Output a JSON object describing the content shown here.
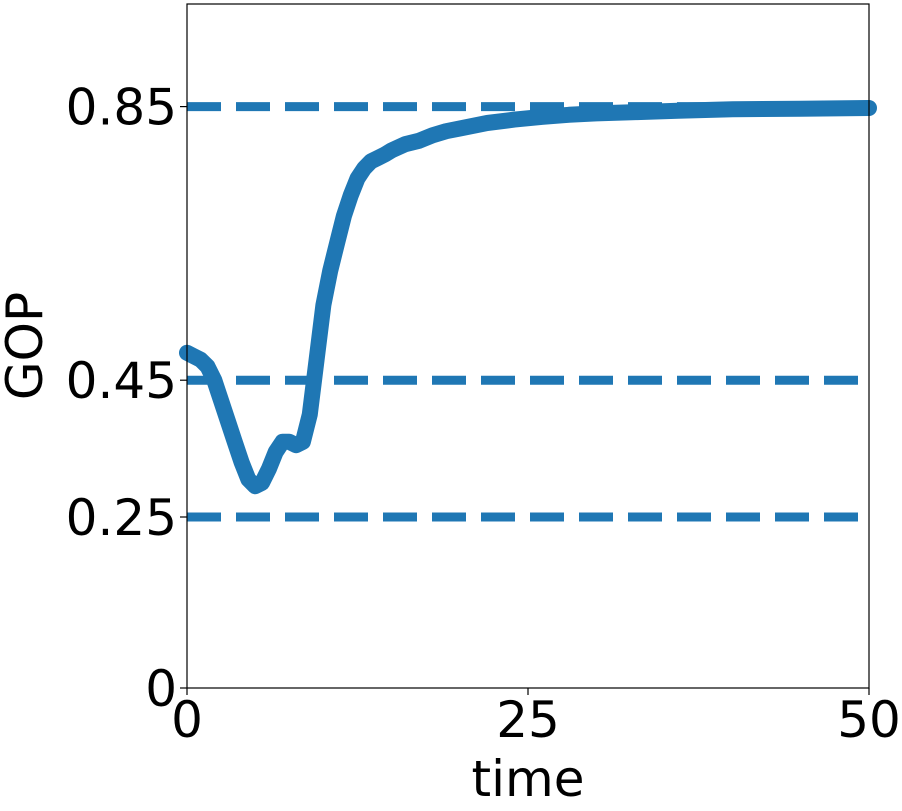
{
  "chart_data": {
    "type": "line",
    "title": "",
    "xlabel": "time",
    "ylabel": "GOP",
    "xlim": [
      0,
      50
    ],
    "ylim": [
      0,
      1.0
    ],
    "xticks": [
      0,
      25,
      50
    ],
    "xtick_labels": [
      "0",
      "25",
      "50"
    ],
    "yticks": [
      0,
      0.25,
      0.45,
      0.85
    ],
    "ytick_labels": [
      "0",
      "0.25",
      "0.45",
      "0.85"
    ],
    "grid": false,
    "series": [
      {
        "values_x": [
          0,
          0.5,
          1,
          1.5,
          2,
          2.5,
          3,
          3.5,
          4,
          4.5,
          5,
          5.5,
          6,
          6.5,
          7,
          7.5,
          8,
          8.5,
          9,
          9.5,
          10,
          10.5,
          11,
          11.5,
          12,
          12.5,
          13,
          13.5,
          14,
          14.5,
          15,
          16,
          17,
          18,
          19,
          20,
          22,
          24,
          26,
          28,
          30,
          33,
          36,
          40,
          45,
          50
        ],
        "values_y": [
          0.49,
          0.485,
          0.48,
          0.47,
          0.45,
          0.42,
          0.39,
          0.36,
          0.33,
          0.305,
          0.295,
          0.3,
          0.32,
          0.345,
          0.36,
          0.36,
          0.355,
          0.36,
          0.4,
          0.48,
          0.56,
          0.61,
          0.65,
          0.69,
          0.72,
          0.745,
          0.76,
          0.77,
          0.775,
          0.78,
          0.786,
          0.795,
          0.8,
          0.808,
          0.814,
          0.818,
          0.826,
          0.831,
          0.835,
          0.838,
          0.84,
          0.842,
          0.844,
          0.846,
          0.847,
          0.848
        ]
      }
    ],
    "reference_lines": [
      0.85,
      0.45,
      0.25
    ],
    "colors": {
      "series": "#1f77b4",
      "reference": "#1f77b4",
      "axis": "#000000"
    }
  }
}
